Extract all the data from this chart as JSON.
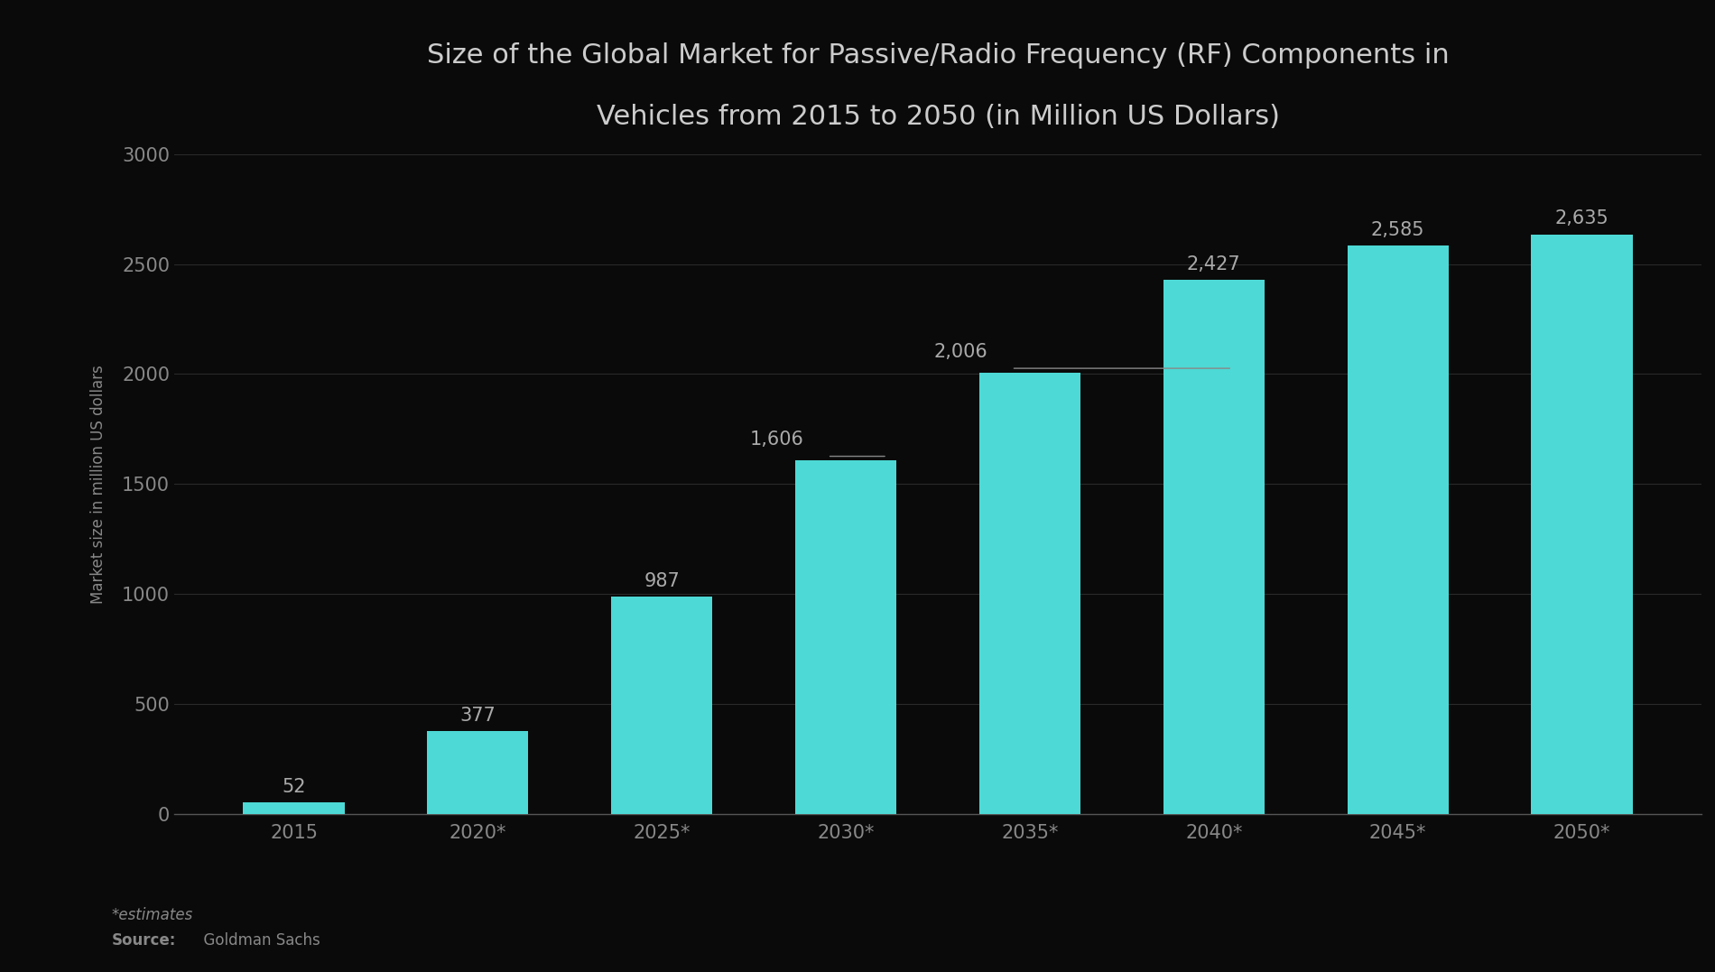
{
  "categories": [
    "2015",
    "2020*",
    "2025*",
    "2030*",
    "2035*",
    "2040*",
    "2045*",
    "2050*"
  ],
  "values": [
    52,
    377,
    987,
    1606,
    2006,
    2427,
    2585,
    2635
  ],
  "bar_color": "#4dd9d5",
  "background_color": "#0a0a0a",
  "title_line1": "Size of the Global Market for Passive/Radio Frequency (RF) Components in",
  "title_line2": "Vehicles from 2015 to 2050 (in Million US Dollars)",
  "title_color": "#cccccc",
  "ylabel": "Market size in million US dollars",
  "ylabel_color": "#888888",
  "tick_color": "#888888",
  "axis_color": "#555555",
  "ylim": [
    0,
    3000
  ],
  "yticks": [
    0,
    500,
    1000,
    1500,
    2000,
    2500,
    3000
  ],
  "label_color": "#aaaaaa",
  "annotation_line_color": "#888888",
  "footer_bar_color": "#2699c2",
  "footnote_text": "*estimates",
  "footnote_color": "#888888",
  "source_bold": "Source:",
  "source_rest": "  Goldman Sachs",
  "source_color": "#888888",
  "title_fontsize": 22,
  "label_fontsize": 15,
  "tick_fontsize": 15,
  "ylabel_fontsize": 12,
  "grid_color": "#2a2a2a"
}
